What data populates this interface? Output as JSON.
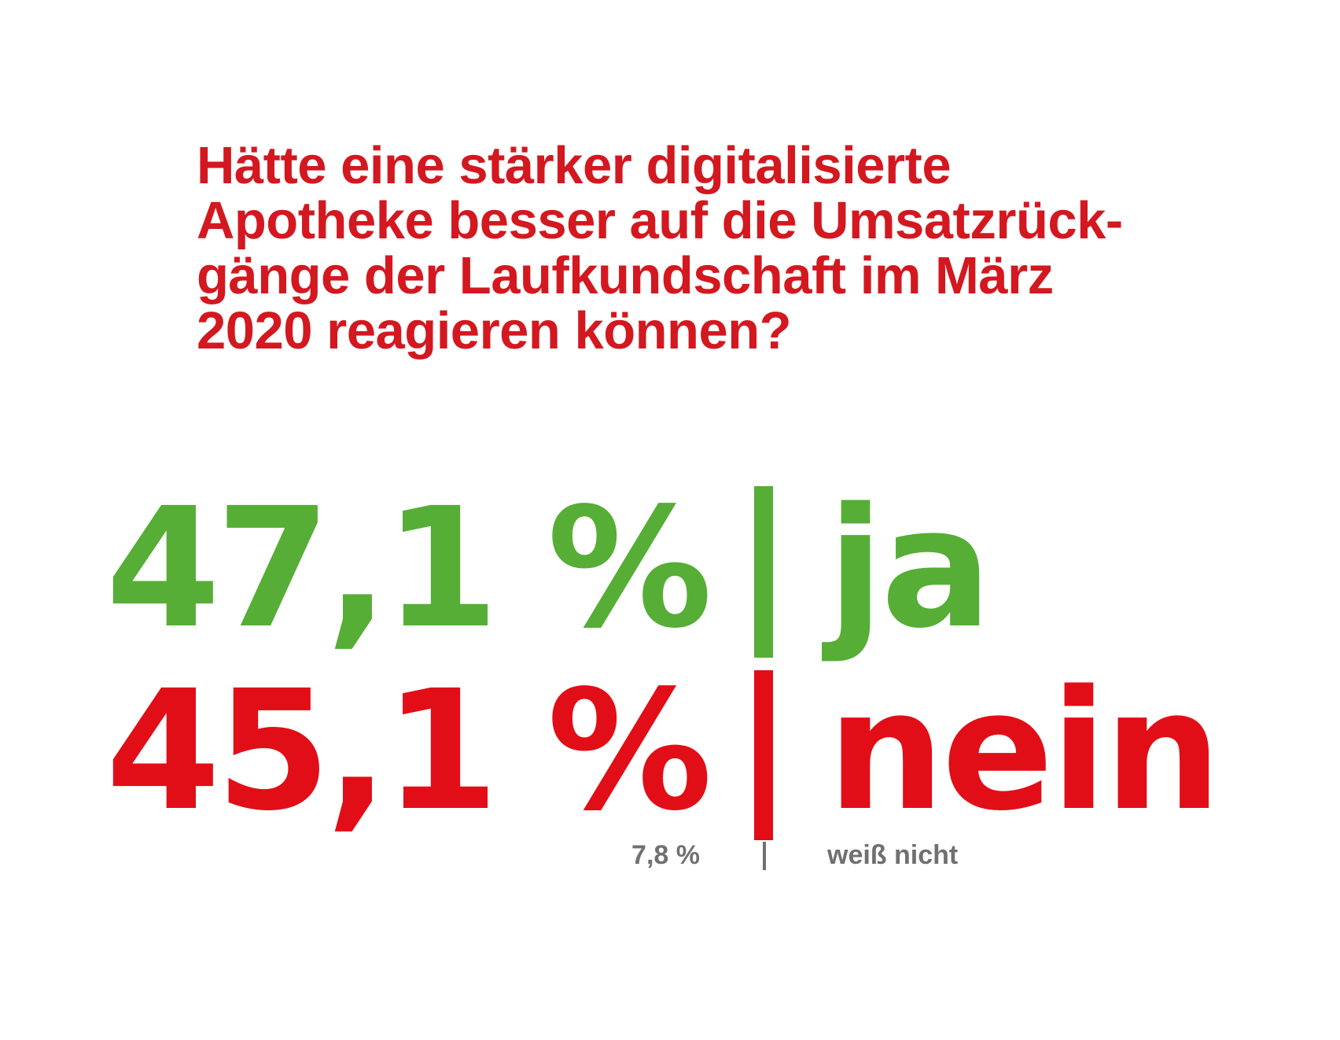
{
  "question": {
    "lines": [
      "Hätte eine stärker digitalisierte",
      "Apotheke besser auf die Umsatzrück-",
      "gänge der Laufkundschaft im März",
      "2020 reagieren können?"
    ]
  },
  "colors": {
    "title": "#d31820",
    "ja": "#56ae36",
    "nein": "#e20e17",
    "weiss_nicht": "#707070"
  },
  "chart_data": {
    "type": "table",
    "title": "Hätte eine stärker digitalisierte Apotheke besser auf die Umsatzrückgänge der Laufkundschaft im März 2020 reagieren können?",
    "unit": "%",
    "categories": [
      "ja",
      "nein",
      "weiß nicht"
    ],
    "values": [
      47.1,
      45.1,
      7.8
    ],
    "rows": [
      {
        "label": "ja",
        "value": 47.1,
        "display": "47,1 %"
      },
      {
        "label": "nein",
        "value": 45.1,
        "display": "45,1 %"
      },
      {
        "label": "weiß nicht",
        "value": 7.8,
        "display": "7,8 %"
      }
    ]
  }
}
